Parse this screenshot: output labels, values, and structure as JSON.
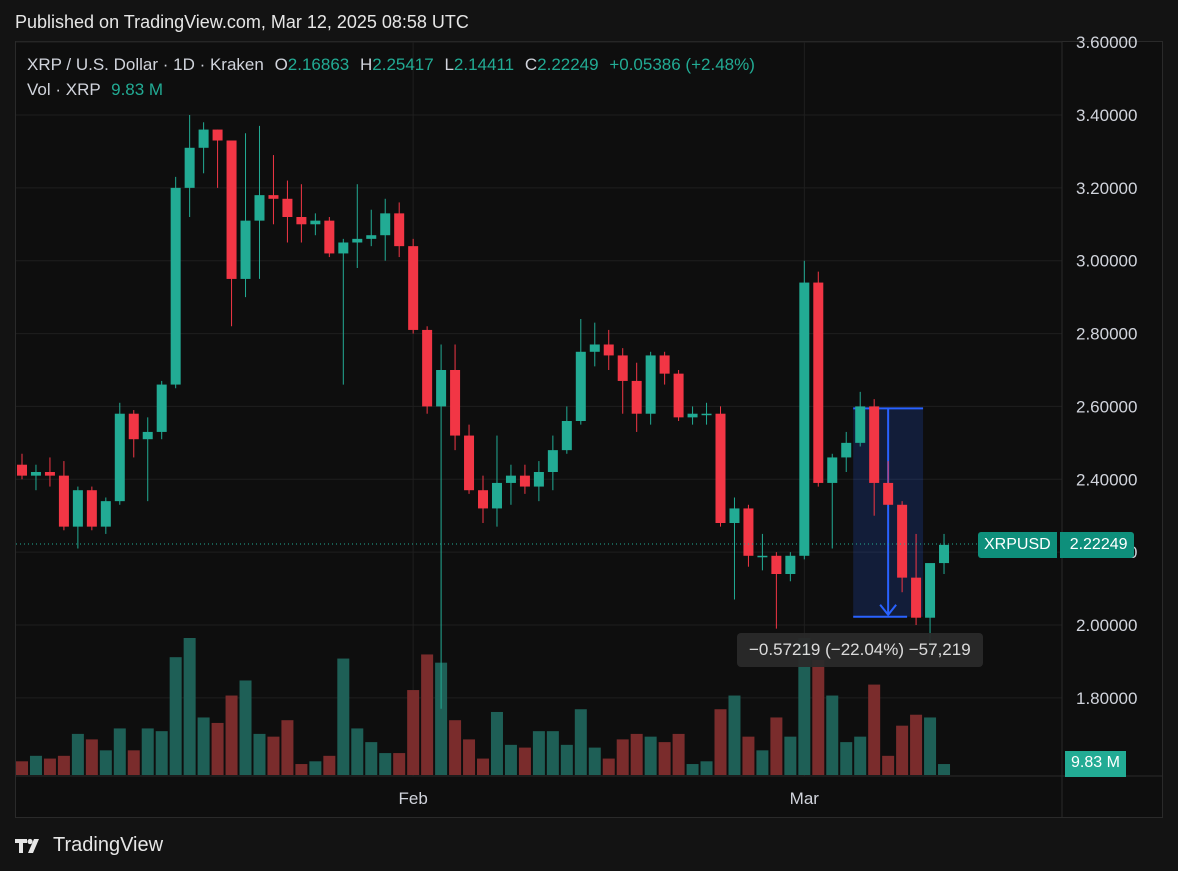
{
  "header": {
    "published": "Published on TradingView.com, Mar 12, 2025 08:58 UTC"
  },
  "legend": {
    "symbol": "XRP / U.S. Dollar · 1D · Kraken",
    "o_label": "O",
    "o_value": "2.16863",
    "h_label": "H",
    "h_value": "2.25417",
    "l_label": "L",
    "l_value": "2.14411",
    "c_label": "C",
    "c_value": "2.22249",
    "change": "+0.05386 (+2.48%)",
    "vol_label": "Vol · XRP",
    "vol_value": "9.83 M"
  },
  "price_tag": {
    "symbol": "XRPUSD",
    "value": "2.22249"
  },
  "volume_tag": "9.83 M",
  "measure": {
    "label": "−0.57219 (−22.04%) −57,219",
    "from": 2.5947,
    "to": 2.0225
  },
  "footer": {
    "brand": "TradingView"
  },
  "colors": {
    "up": "#22ab94",
    "down": "#f23645",
    "up_vol": "#1e5f56",
    "down_vol": "#7a2c2c",
    "measure": "#2962ff"
  },
  "chart_data": {
    "type": "candlestick",
    "y_axis": {
      "ticks": [
        "3.60000",
        "3.40000",
        "3.20000",
        "3.00000",
        "2.80000",
        "2.60000",
        "2.40000",
        "2.20000",
        "2.00000",
        "1.80000"
      ],
      "tick_values": [
        3.6,
        3.4,
        3.2,
        3.0,
        2.8,
        2.6,
        2.4,
        2.2,
        2.0,
        1.8
      ],
      "range": [
        1.78,
        3.62
      ]
    },
    "x_axis": {
      "labels": [
        "Feb",
        "Mar"
      ],
      "label_index": [
        28,
        56
      ]
    },
    "last_price": 2.22249,
    "candles": [
      {
        "o": 2.44,
        "h": 2.47,
        "l": 2.4,
        "c": 2.41
      },
      {
        "o": 2.41,
        "h": 2.44,
        "l": 2.37,
        "c": 2.42
      },
      {
        "o": 2.42,
        "h": 2.46,
        "l": 2.38,
        "c": 2.41
      },
      {
        "o": 2.41,
        "h": 2.45,
        "l": 2.26,
        "c": 2.27
      },
      {
        "o": 2.27,
        "h": 2.38,
        "l": 2.21,
        "c": 2.37
      },
      {
        "o": 2.37,
        "h": 2.38,
        "l": 2.26,
        "c": 2.27
      },
      {
        "o": 2.27,
        "h": 2.35,
        "l": 2.25,
        "c": 2.34
      },
      {
        "o": 2.34,
        "h": 2.61,
        "l": 2.33,
        "c": 2.58
      },
      {
        "o": 2.58,
        "h": 2.59,
        "l": 2.46,
        "c": 2.51
      },
      {
        "o": 2.51,
        "h": 2.57,
        "l": 2.34,
        "c": 2.53
      },
      {
        "o": 2.53,
        "h": 2.67,
        "l": 2.51,
        "c": 2.66
      },
      {
        "o": 2.66,
        "h": 3.23,
        "l": 2.65,
        "c": 3.2
      },
      {
        "o": 3.2,
        "h": 3.4,
        "l": 3.12,
        "c": 3.31
      },
      {
        "o": 3.31,
        "h": 3.38,
        "l": 3.24,
        "c": 3.36
      },
      {
        "o": 3.36,
        "h": 3.36,
        "l": 3.2,
        "c": 3.33
      },
      {
        "o": 3.33,
        "h": 3.33,
        "l": 2.82,
        "c": 2.95
      },
      {
        "o": 2.95,
        "h": 3.35,
        "l": 2.9,
        "c": 3.11
      },
      {
        "o": 3.11,
        "h": 3.37,
        "l": 2.95,
        "c": 3.18
      },
      {
        "o": 3.18,
        "h": 3.29,
        "l": 3.1,
        "c": 3.17
      },
      {
        "o": 3.17,
        "h": 3.22,
        "l": 3.05,
        "c": 3.12
      },
      {
        "o": 3.12,
        "h": 3.21,
        "l": 3.05,
        "c": 3.1
      },
      {
        "o": 3.1,
        "h": 3.13,
        "l": 3.07,
        "c": 3.11
      },
      {
        "o": 3.11,
        "h": 3.12,
        "l": 3.01,
        "c": 3.02
      },
      {
        "o": 3.02,
        "h": 3.06,
        "l": 2.66,
        "c": 3.05
      },
      {
        "o": 3.05,
        "h": 3.21,
        "l": 2.98,
        "c": 3.06
      },
      {
        "o": 3.06,
        "h": 3.14,
        "l": 3.04,
        "c": 3.07
      },
      {
        "o": 3.07,
        "h": 3.17,
        "l": 3.0,
        "c": 3.13
      },
      {
        "o": 3.13,
        "h": 3.16,
        "l": 3.01,
        "c": 3.04
      },
      {
        "o": 3.04,
        "h": 3.06,
        "l": 2.8,
        "c": 2.81
      },
      {
        "o": 2.81,
        "h": 2.82,
        "l": 2.58,
        "c": 2.6
      },
      {
        "o": 2.6,
        "h": 2.77,
        "l": 1.77,
        "c": 2.7
      },
      {
        "o": 2.7,
        "h": 2.77,
        "l": 2.48,
        "c": 2.52
      },
      {
        "o": 2.52,
        "h": 2.55,
        "l": 2.36,
        "c": 2.37
      },
      {
        "o": 2.37,
        "h": 2.41,
        "l": 2.28,
        "c": 2.32
      },
      {
        "o": 2.32,
        "h": 2.52,
        "l": 2.27,
        "c": 2.39
      },
      {
        "o": 2.39,
        "h": 2.44,
        "l": 2.33,
        "c": 2.41
      },
      {
        "o": 2.41,
        "h": 2.44,
        "l": 2.36,
        "c": 2.38
      },
      {
        "o": 2.38,
        "h": 2.45,
        "l": 2.34,
        "c": 2.42
      },
      {
        "o": 2.42,
        "h": 2.52,
        "l": 2.37,
        "c": 2.48
      },
      {
        "o": 2.48,
        "h": 2.6,
        "l": 2.47,
        "c": 2.56
      },
      {
        "o": 2.56,
        "h": 2.84,
        "l": 2.55,
        "c": 2.75
      },
      {
        "o": 2.75,
        "h": 2.83,
        "l": 2.71,
        "c": 2.77
      },
      {
        "o": 2.77,
        "h": 2.81,
        "l": 2.7,
        "c": 2.74
      },
      {
        "o": 2.74,
        "h": 2.76,
        "l": 2.58,
        "c": 2.67
      },
      {
        "o": 2.67,
        "h": 2.72,
        "l": 2.53,
        "c": 2.58
      },
      {
        "o": 2.58,
        "h": 2.75,
        "l": 2.55,
        "c": 2.74
      },
      {
        "o": 2.74,
        "h": 2.75,
        "l": 2.66,
        "c": 2.69
      },
      {
        "o": 2.69,
        "h": 2.7,
        "l": 2.56,
        "c": 2.57
      },
      {
        "o": 2.57,
        "h": 2.6,
        "l": 2.55,
        "c": 2.58
      },
      {
        "o": 2.58,
        "h": 2.61,
        "l": 2.55,
        "c": 2.58
      },
      {
        "o": 2.58,
        "h": 2.6,
        "l": 2.27,
        "c": 2.28
      },
      {
        "o": 2.28,
        "h": 2.35,
        "l": 2.07,
        "c": 2.32
      },
      {
        "o": 2.32,
        "h": 2.33,
        "l": 2.16,
        "c": 2.19
      },
      {
        "o": 2.19,
        "h": 2.25,
        "l": 2.15,
        "c": 2.19
      },
      {
        "o": 2.19,
        "h": 2.2,
        "l": 1.99,
        "c": 2.14
      },
      {
        "o": 2.14,
        "h": 2.2,
        "l": 2.12,
        "c": 2.19
      },
      {
        "o": 2.19,
        "h": 3.0,
        "l": 2.18,
        "c": 2.94
      },
      {
        "o": 2.94,
        "h": 2.97,
        "l": 2.38,
        "c": 2.39
      },
      {
        "o": 2.39,
        "h": 2.47,
        "l": 2.21,
        "c": 2.46
      },
      {
        "o": 2.46,
        "h": 2.53,
        "l": 2.42,
        "c": 2.5
      },
      {
        "o": 2.5,
        "h": 2.64,
        "l": 2.49,
        "c": 2.6
      },
      {
        "o": 2.6,
        "h": 2.62,
        "l": 2.3,
        "c": 2.39
      },
      {
        "o": 2.39,
        "h": 2.45,
        "l": 2.33,
        "c": 2.33
      },
      {
        "o": 2.33,
        "h": 2.34,
        "l": 2.09,
        "c": 2.13
      },
      {
        "o": 2.13,
        "h": 2.25,
        "l": 2.0,
        "c": 2.02
      },
      {
        "o": 2.02,
        "h": 2.16,
        "l": 1.92,
        "c": 2.17
      },
      {
        "o": 2.17,
        "h": 2.25,
        "l": 2.14,
        "c": 2.22
      }
    ],
    "volume_relative": [
      0.1,
      0.14,
      0.12,
      0.14,
      0.3,
      0.26,
      0.18,
      0.34,
      0.18,
      0.34,
      0.32,
      0.86,
      1.0,
      0.42,
      0.38,
      0.58,
      0.69,
      0.3,
      0.28,
      0.4,
      0.08,
      0.1,
      0.14,
      0.85,
      0.34,
      0.24,
      0.16,
      0.16,
      0.62,
      0.88,
      0.82,
      0.4,
      0.26,
      0.12,
      0.46,
      0.22,
      0.2,
      0.32,
      0.32,
      0.22,
      0.48,
      0.2,
      0.12,
      0.26,
      0.3,
      0.28,
      0.24,
      0.3,
      0.08,
      0.1,
      0.48,
      0.58,
      0.28,
      0.18,
      0.42,
      0.28,
      1.0,
      0.84,
      0.58,
      0.24,
      0.28,
      0.66,
      0.14,
      0.36,
      0.44,
      0.42,
      0.08
    ]
  }
}
